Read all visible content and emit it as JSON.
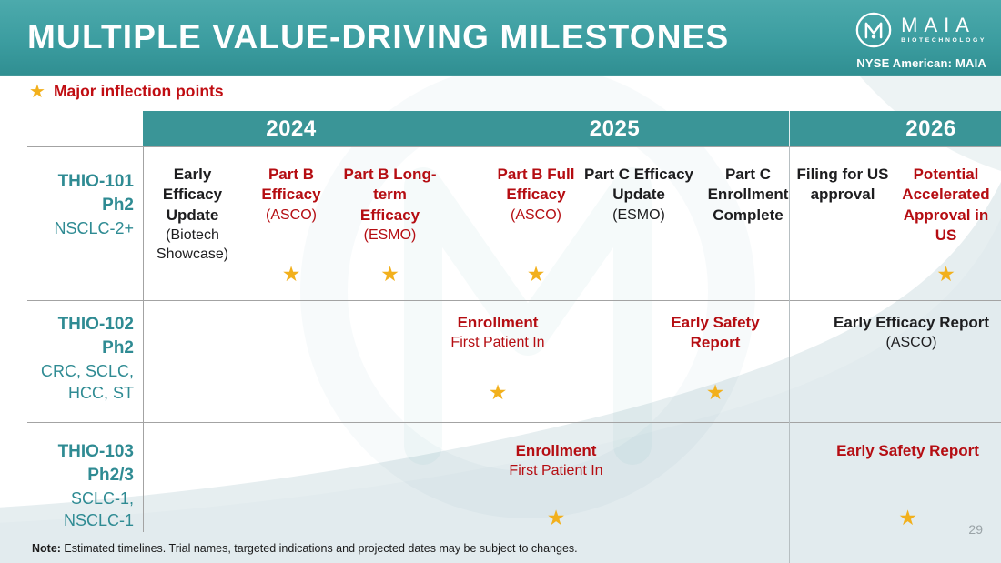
{
  "header": {
    "title": "MULTIPLE VALUE-DRIVING MILESTONES",
    "logo": {
      "brand": "MAIA",
      "subbrand": "BIOTECHNOLOGY",
      "ticker": "NYSE American: MAIA"
    }
  },
  "legend": {
    "star_icon": "★",
    "label": "Major inflection points"
  },
  "footer": {
    "note_label": "Note:",
    "note_text": " Estimated timelines. Trial names, targeted indications and projected dates may be subject to changes.",
    "page_number": "29"
  },
  "colors": {
    "banner_top": "#4caaac",
    "banner_bottom": "#308f92",
    "header_teal": "#3a9597",
    "label_teal": "#2f8b93",
    "accent_red": "#b50d12",
    "star_gold": "#f2b01c",
    "grid_gray": "#a3a3a3",
    "text_dark": "#1d1d1f"
  },
  "timeline": {
    "years": [
      "2024",
      "2025",
      "2026"
    ],
    "star_icon": "★",
    "rows": [
      {
        "trial": "THIO-101",
        "phase": "Ph2",
        "indications": [
          "NSCLC-2+"
        ],
        "milestones": [
          {
            "year": "2024",
            "slot": 0,
            "title": "Early Efficacy Update",
            "subtitle": "(Biotech Showcase)",
            "tone": "dark",
            "star": false
          },
          {
            "year": "2024",
            "slot": 1,
            "title": "Part B Efficacy",
            "subtitle": "(ASCO)",
            "tone": "red",
            "star": true
          },
          {
            "year": "2024",
            "slot": 2,
            "title": "Part B Long-term Efficacy",
            "subtitle": "(ESMO)",
            "tone": "red",
            "star": true
          },
          {
            "year": "2025",
            "slot": 0,
            "title": "Part B Full Efficacy",
            "subtitle": "(ASCO)",
            "tone": "red",
            "star": true
          },
          {
            "year": "2025",
            "slot": 1,
            "title": "Part C Efficacy Update",
            "subtitle": "(ESMO)",
            "tone": "dark",
            "star": false
          },
          {
            "year": "2025",
            "slot": 2,
            "title": "Part C Enrollment Complete",
            "subtitle": "",
            "tone": "dark",
            "star": false
          },
          {
            "year": "2026",
            "slot": 0,
            "title": "Filing for US approval",
            "subtitle": "",
            "tone": "dark",
            "star": false
          },
          {
            "year": "2026",
            "slot": 1,
            "title": "Potential Accelerated Approval in US",
            "subtitle": "",
            "tone": "red",
            "star": true
          }
        ]
      },
      {
        "trial": "THIO-102",
        "phase": "Ph2",
        "indications": [
          "CRC, SCLC,",
          "HCC, ST"
        ],
        "milestones": [
          {
            "year": "2025",
            "slot": 0,
            "title": "Enrollment",
            "subtitle": "First Patient In",
            "tone": "red",
            "star": true
          },
          {
            "year": "2025",
            "slot": 2,
            "title": "Early Safety Report",
            "subtitle": "",
            "tone": "red",
            "star": true
          },
          {
            "year": "2026",
            "slot": 0,
            "title": "Early Efficacy Report",
            "subtitle": "(ASCO)",
            "tone": "dark",
            "star": false
          }
        ]
      },
      {
        "trial": "THIO-103",
        "phase": "Ph2/3",
        "indications": [
          "SCLC-1,",
          "NSCLC-1"
        ],
        "milestones": [
          {
            "year": "2025",
            "slot": 0,
            "title": "Enrollment",
            "subtitle": "First Patient In",
            "tone": "red",
            "star": true
          },
          {
            "year": "2026",
            "slot": 0,
            "title": "Early Safety Report",
            "subtitle": "",
            "tone": "red",
            "star": true
          }
        ]
      }
    ]
  }
}
